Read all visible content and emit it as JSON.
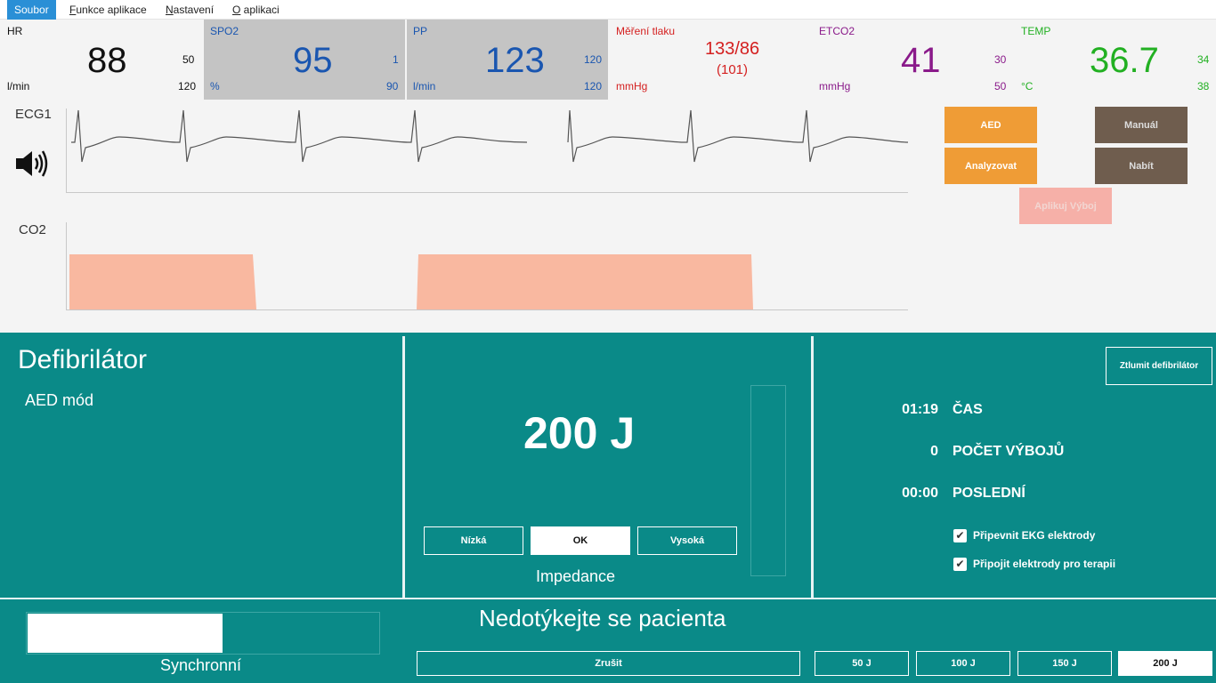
{
  "menu": [
    "Soubor",
    "Funkce aplikace",
    "Nastavení",
    "O aplikaci"
  ],
  "menu_accel": [
    "",
    "F",
    "N",
    "O"
  ],
  "menu_rest": [
    "Soubor",
    "unkce aplikace",
    "astavení",
    " aplikaci"
  ],
  "vitals": {
    "hr": {
      "label": "HR",
      "value": "88",
      "unit": "l/min",
      "low": "50",
      "high": "120",
      "color": "#111111"
    },
    "spo2": {
      "label": "SPO2",
      "value": "95",
      "unit": "%",
      "low": "1",
      "high": "90",
      "color": "#1a56b0"
    },
    "pp": {
      "label": "PP",
      "value": "123",
      "unit": "l/min",
      "low": "120",
      "high": "120",
      "color": "#1a56b0"
    },
    "bp": {
      "label": "Měření tlaku",
      "value": "133/86",
      "mean": "(101)",
      "unit": "mmHg",
      "color": "#d42020"
    },
    "etco2": {
      "label": "ETCO2",
      "value": "41",
      "unit": "mmHg",
      "low": "30",
      "high": "50",
      "color": "#8a1a8a"
    },
    "temp": {
      "label": "TEMP",
      "value": "36.7",
      "unit": "°C",
      "low": "34",
      "high": "38",
      "color": "#22b022"
    }
  },
  "waves": {
    "ecg_label": "ECG1",
    "co2_label": "CO2",
    "sound_icon": "speaker-icon"
  },
  "monitor_buttons": {
    "aed": "AED",
    "manual": "Manuál",
    "analyze": "Analyzovat",
    "charge": "Nabít",
    "apply_shock": "Aplikuj Výboj",
    "colors": {
      "orange": "#ef9c36",
      "brown": "#6f5d4e",
      "pink": "#f6b0a8"
    }
  },
  "defib": {
    "title": "Defibrilátor",
    "mode": "AED mód",
    "energy": "200 J",
    "impedance_buttons": [
      "Nízká",
      "OK",
      "Vysoká"
    ],
    "impedance_label": "Impedance",
    "mute_button": "Ztlumit defibrilátor",
    "stats": [
      {
        "value": "01:19",
        "label": "ČAS"
      },
      {
        "value": "0",
        "label": "POČET VÝBOJŮ"
      },
      {
        "value": "00:00",
        "label": "POSLEDNÍ"
      }
    ],
    "checks": [
      "Připevnit EKG elektrody",
      "Připojit elektrody pro terapii"
    ],
    "status_text": "Nedotýkejte se pacienta",
    "sync_label": "Synchronní",
    "cancel_button": "Zrušit",
    "energy_buttons": [
      "50 J",
      "100 J",
      "150 J",
      "200 J"
    ],
    "colors": {
      "panel": "#0a8a88"
    }
  }
}
